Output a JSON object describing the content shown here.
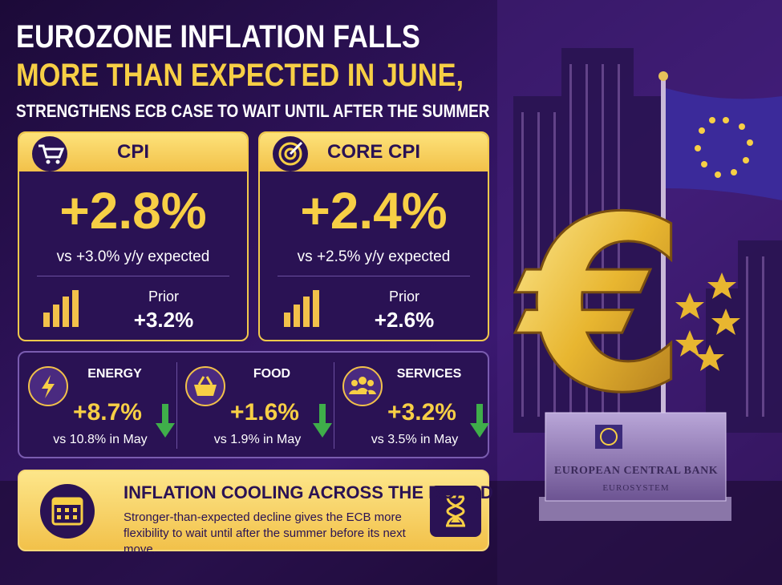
{
  "header": {
    "title_line1": "EUROZONE INFLATION FALLS",
    "title_line2": "MORE THAN EXPECTED IN JUNE,",
    "subtitle": "STRENGTHENS ECB CASE TO WAIT UNTIL AFTER THE SUMMER"
  },
  "cards": [
    {
      "label": "CPI",
      "value": "+2.8%",
      "expected": "vs +3.0% y/y expected",
      "prior_label": "Prior",
      "prior_value": "+3.2%"
    },
    {
      "label": "CORE CPI",
      "value": "+2.4%",
      "expected": "vs +2.5% y/y expected",
      "prior_label": "Prior",
      "prior_value": "+2.6%"
    }
  ],
  "components": [
    {
      "label": "ENERGY",
      "value": "+8.7%",
      "comparison": "vs 10.8% in May"
    },
    {
      "label": "FOOD",
      "value": "+1.6%",
      "comparison": "vs 1.9% in May"
    },
    {
      "label": "SERVICES",
      "value": "+3.2%",
      "comparison": "vs 3.5% in May"
    }
  ],
  "banner": {
    "title": "INFLATION COOLING ACROSS THE BOARD",
    "text": "Stronger-than-expected decline gives the ECB more flexibility to wait until after the summer before its next move."
  },
  "sign": {
    "name": "EUROPEAN CENTRAL BANK",
    "subtitle": "EUROSYSTEM"
  }
}
